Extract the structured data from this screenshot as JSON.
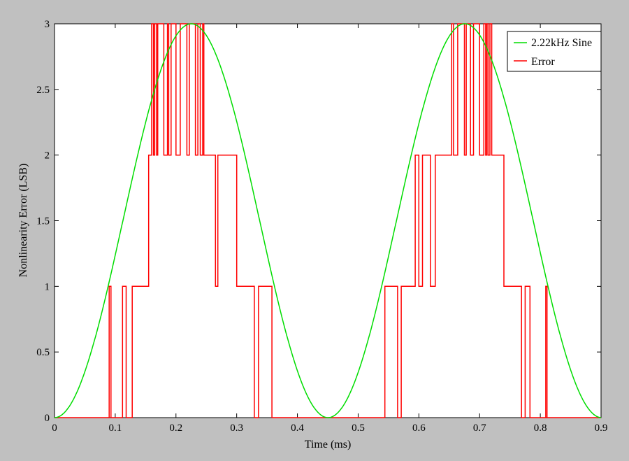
{
  "chart_data": {
    "type": "line",
    "title": "",
    "xlabel": "Time (ms)",
    "ylabel": "Nonlinearity Error (LSB)",
    "xlim": [
      0,
      0.9
    ],
    "ylim": [
      0,
      3
    ],
    "xticks": [
      "0",
      "0.1",
      "0.2",
      "0.3",
      "0.4",
      "0.5",
      "0.6",
      "0.7",
      "0.8",
      "0.9"
    ],
    "yticks": [
      "0",
      "0.5",
      "1",
      "1.5",
      "2",
      "2.5",
      "3"
    ],
    "grid": false,
    "legend": "top-right",
    "series": [
      {
        "name": "2.22kHz Sine",
        "color": "#00dd00",
        "kind": "function",
        "frequency_khz": 2.22,
        "amplitude": 1.5,
        "offset": 1.5
      },
      {
        "name": "Error",
        "color": "#ff0000",
        "kind": "step",
        "x": [
          0,
          0.09,
          0.093,
          0.112,
          0.118,
          0.128,
          0.133,
          0.155,
          0.16,
          0.163,
          0.165,
          0.168,
          0.17,
          0.174,
          0.18,
          0.186,
          0.188,
          0.192,
          0.196,
          0.2,
          0.207,
          0.212,
          0.218,
          0.222,
          0.226,
          0.232,
          0.236,
          0.24,
          0.244,
          0.246,
          0.265,
          0.269,
          0.3,
          0.307,
          0.329,
          0.336,
          0.358,
          0.544,
          0.565,
          0.571,
          0.59,
          0.594,
          0.6,
          0.606,
          0.619,
          0.627,
          0.633,
          0.654,
          0.657,
          0.664,
          0.668,
          0.675,
          0.678,
          0.685,
          0.69,
          0.694,
          0.7,
          0.707,
          0.71,
          0.712,
          0.714,
          0.717,
          0.72,
          0.74,
          0.769,
          0.775,
          0.783,
          0.787,
          0.809,
          0.811,
          0.9
        ],
        "y": [
          0,
          1,
          0,
          1,
          0,
          1,
          1,
          2,
          3,
          2,
          3,
          2,
          3,
          3,
          2,
          3,
          2,
          3,
          3,
          2,
          3,
          3,
          2,
          3,
          3,
          2,
          3,
          2,
          3,
          2,
          1,
          2,
          1,
          1,
          0,
          1,
          0,
          1,
          0,
          1,
          1,
          2,
          1,
          2,
          1,
          2,
          2,
          3,
          2,
          3,
          3,
          2,
          3,
          2,
          3,
          3,
          2,
          3,
          2,
          3,
          2,
          3,
          2,
          1,
          0,
          1,
          0,
          0,
          1,
          0,
          0
        ]
      }
    ]
  }
}
